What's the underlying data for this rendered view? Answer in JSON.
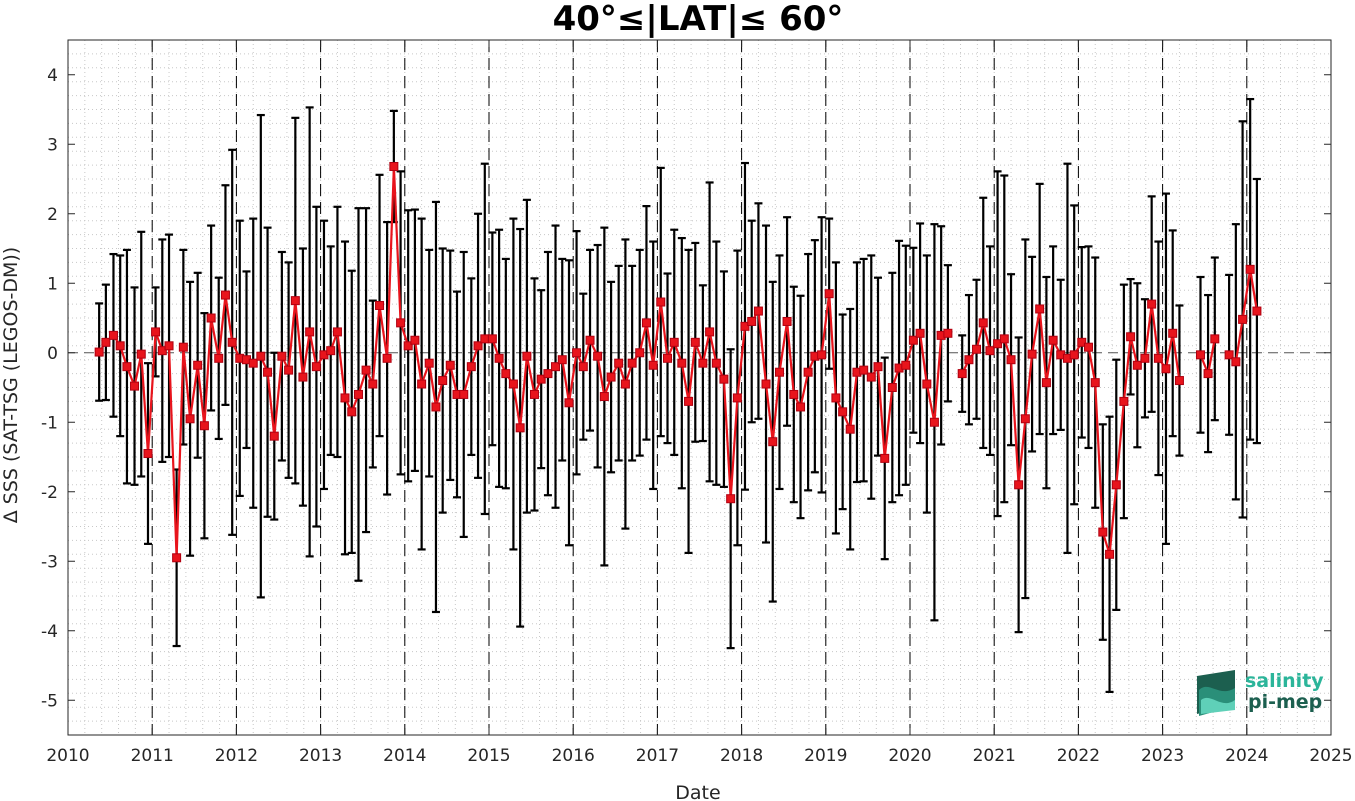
{
  "chart_data": {
    "type": "line",
    "title": "40°≤|LAT|≤ 60°",
    "xlabel": "Date",
    "ylabel": "Δ SSS (SAT-TSG (LEGOS-DM))",
    "xlim": [
      2010,
      2025
    ],
    "ylim": [
      -5.5,
      4.5
    ],
    "x_ticks": [
      "2010",
      "2011",
      "2012",
      "2013",
      "2014",
      "2015",
      "2016",
      "2017",
      "2018",
      "2019",
      "2020",
      "2021",
      "2022",
      "2023",
      "2024",
      "2025"
    ],
    "y_ticks": [
      "4",
      "3",
      "2",
      "1",
      "0",
      "-1",
      "-2",
      "-3",
      "-4",
      "-5"
    ],
    "grid": "dotted minor grid, dashed vertical lines at each year, dashed zero line",
    "series": [
      {
        "style": "red line with square markers and black error bars (±1 std)",
        "color": "#e8141c",
        "errorbar_color": "#000000",
        "points": [
          {
            "x": 2010.37,
            "y": 0.01,
            "err": 0.7
          },
          {
            "x": 2010.45,
            "y": 0.15,
            "err": 0.83
          },
          {
            "x": 2010.54,
            "y": 0.25,
            "err": 1.17
          },
          {
            "x": 2010.62,
            "y": 0.1,
            "err": 1.3
          },
          {
            "x": 2010.7,
            "y": -0.2,
            "err": 1.68
          },
          {
            "x": 2010.79,
            "y": -0.48,
            "err": 1.42
          },
          {
            "x": 2010.87,
            "y": -0.02,
            "err": 1.76
          },
          {
            "x": 2010.95,
            "y": -1.45,
            "err": 1.3
          },
          {
            "x": 2011.04,
            "y": 0.3,
            "err": 0.64
          },
          {
            "x": 2011.12,
            "y": 0.03,
            "err": 1.6
          },
          {
            "x": 2011.2,
            "y": 0.1,
            "err": 1.6
          },
          {
            "x": 2011.29,
            "y": -2.95,
            "err": 1.27
          },
          {
            "x": 2011.37,
            "y": 0.08,
            "err": 1.4
          },
          {
            "x": 2011.45,
            "y": -0.95,
            "err": 1.97
          },
          {
            "x": 2011.54,
            "y": -0.18,
            "err": 1.33
          },
          {
            "x": 2011.62,
            "y": -1.05,
            "err": 1.62
          },
          {
            "x": 2011.7,
            "y": 0.5,
            "err": 1.33
          },
          {
            "x": 2011.79,
            "y": -0.08,
            "err": 1.16
          },
          {
            "x": 2011.87,
            "y": 0.83,
            "err": 1.58
          },
          {
            "x": 2011.95,
            "y": 0.15,
            "err": 2.77
          },
          {
            "x": 2012.04,
            "y": -0.08,
            "err": 1.98
          },
          {
            "x": 2012.12,
            "y": -0.1,
            "err": 1.27
          },
          {
            "x": 2012.2,
            "y": -0.15,
            "err": 2.08
          },
          {
            "x": 2012.29,
            "y": -0.05,
            "err": 3.47
          },
          {
            "x": 2012.37,
            "y": -0.28,
            "err": 2.08
          },
          {
            "x": 2012.45,
            "y": -1.2,
            "err": 1.2
          },
          {
            "x": 2012.54,
            "y": -0.05,
            "err": 1.5
          },
          {
            "x": 2012.62,
            "y": -0.25,
            "err": 1.55
          },
          {
            "x": 2012.7,
            "y": 0.75,
            "err": 2.63
          },
          {
            "x": 2012.79,
            "y": -0.35,
            "err": 1.85
          },
          {
            "x": 2012.87,
            "y": 0.3,
            "err": 3.23
          },
          {
            "x": 2012.95,
            "y": -0.2,
            "err": 2.3
          },
          {
            "x": 2013.04,
            "y": -0.03,
            "err": 1.93
          },
          {
            "x": 2013.12,
            "y": 0.03,
            "err": 1.5
          },
          {
            "x": 2013.2,
            "y": 0.3,
            "err": 1.8
          },
          {
            "x": 2013.29,
            "y": -0.65,
            "err": 2.25
          },
          {
            "x": 2013.37,
            "y": -0.85,
            "err": 2.03
          },
          {
            "x": 2013.45,
            "y": -0.6,
            "err": 2.68
          },
          {
            "x": 2013.54,
            "y": -0.25,
            "err": 2.33
          },
          {
            "x": 2013.62,
            "y": -0.45,
            "err": 1.2
          },
          {
            "x": 2013.7,
            "y": 0.68,
            "err": 1.88
          },
          {
            "x": 2013.79,
            "y": -0.08,
            "err": 1.96
          },
          {
            "x": 2013.87,
            "y": 2.68,
            "err": 0.8
          },
          {
            "x": 2013.95,
            "y": 0.43,
            "err": 2.18
          },
          {
            "x": 2014.04,
            "y": 0.1,
            "err": 1.95
          },
          {
            "x": 2014.12,
            "y": 0.18,
            "err": 1.88
          },
          {
            "x": 2014.2,
            "y": -0.45,
            "err": 2.38
          },
          {
            "x": 2014.29,
            "y": -0.15,
            "err": 1.63
          },
          {
            "x": 2014.37,
            "y": -0.78,
            "err": 2.95
          },
          {
            "x": 2014.45,
            "y": -0.4,
            "err": 1.9
          },
          {
            "x": 2014.54,
            "y": -0.18,
            "err": 1.65
          },
          {
            "x": 2014.62,
            "y": -0.6,
            "err": 1.48
          },
          {
            "x": 2014.7,
            "y": -0.6,
            "err": 2.05
          },
          {
            "x": 2014.79,
            "y": -0.2,
            "err": 1.27
          },
          {
            "x": 2014.87,
            "y": 0.1,
            "err": 1.9
          },
          {
            "x": 2014.95,
            "y": 0.2,
            "err": 2.52
          },
          {
            "x": 2015.04,
            "y": 0.2,
            "err": 1.53
          },
          {
            "x": 2015.12,
            "y": -0.08,
            "err": 1.85
          },
          {
            "x": 2015.2,
            "y": -0.3,
            "err": 1.65
          },
          {
            "x": 2015.29,
            "y": -0.45,
            "err": 2.38
          },
          {
            "x": 2015.37,
            "y": -1.08,
            "err": 2.86
          },
          {
            "x": 2015.45,
            "y": -0.05,
            "err": 2.25
          },
          {
            "x": 2015.54,
            "y": -0.6,
            "err": 1.67
          },
          {
            "x": 2015.62,
            "y": -0.38,
            "err": 1.28
          },
          {
            "x": 2015.7,
            "y": -0.3,
            "err": 1.75
          },
          {
            "x": 2015.79,
            "y": -0.2,
            "err": 2.03
          },
          {
            "x": 2015.87,
            "y": -0.1,
            "err": 1.45
          },
          {
            "x": 2015.95,
            "y": -0.72,
            "err": 2.05
          },
          {
            "x": 2016.04,
            "y": 0.0,
            "err": 1.75
          },
          {
            "x": 2016.12,
            "y": -0.2,
            "err": 1.05
          },
          {
            "x": 2016.2,
            "y": 0.18,
            "err": 1.3
          },
          {
            "x": 2016.29,
            "y": -0.05,
            "err": 1.6
          },
          {
            "x": 2016.37,
            "y": -0.63,
            "err": 2.43
          },
          {
            "x": 2016.45,
            "y": -0.35,
            "err": 1.37
          },
          {
            "x": 2016.54,
            "y": -0.15,
            "err": 1.4
          },
          {
            "x": 2016.62,
            "y": -0.45,
            "err": 2.08
          },
          {
            "x": 2016.7,
            "y": -0.15,
            "err": 1.4
          },
          {
            "x": 2016.79,
            "y": 0.0,
            "err": 1.48
          },
          {
            "x": 2016.87,
            "y": 0.43,
            "err": 1.68
          },
          {
            "x": 2016.95,
            "y": -0.18,
            "err": 1.78
          },
          {
            "x": 2017.04,
            "y": 0.73,
            "err": 1.93
          },
          {
            "x": 2017.12,
            "y": -0.08,
            "err": 1.22
          },
          {
            "x": 2017.2,
            "y": 0.15,
            "err": 1.62
          },
          {
            "x": 2017.29,
            "y": -0.15,
            "err": 1.8
          },
          {
            "x": 2017.37,
            "y": -0.7,
            "err": 2.18
          },
          {
            "x": 2017.45,
            "y": 0.15,
            "err": 1.43
          },
          {
            "x": 2017.54,
            "y": -0.15,
            "err": 1.12
          },
          {
            "x": 2017.62,
            "y": 0.3,
            "err": 2.15
          },
          {
            "x": 2017.7,
            "y": -0.15,
            "err": 1.75
          },
          {
            "x": 2017.79,
            "y": -0.38,
            "err": 1.55
          },
          {
            "x": 2017.87,
            "y": -2.1,
            "err": 2.15
          },
          {
            "x": 2017.95,
            "y": -0.65,
            "err": 2.12
          },
          {
            "x": 2018.04,
            "y": 0.38,
            "err": 2.35
          },
          {
            "x": 2018.12,
            "y": 0.45,
            "err": 1.45
          },
          {
            "x": 2018.2,
            "y": 0.6,
            "err": 1.55
          },
          {
            "x": 2018.29,
            "y": -0.45,
            "err": 2.28
          },
          {
            "x": 2018.37,
            "y": -1.28,
            "err": 2.3
          },
          {
            "x": 2018.45,
            "y": -0.28,
            "err": 1.68
          },
          {
            "x": 2018.54,
            "y": 0.45,
            "err": 1.5
          },
          {
            "x": 2018.62,
            "y": -0.6,
            "err": 1.55
          },
          {
            "x": 2018.7,
            "y": -0.78,
            "err": 1.6
          },
          {
            "x": 2018.79,
            "y": -0.28,
            "err": 1.7
          },
          {
            "x": 2018.87,
            "y": -0.05,
            "err": 1.67
          },
          {
            "x": 2018.95,
            "y": -0.03,
            "err": 1.98
          },
          {
            "x": 2019.04,
            "y": 0.85,
            "err": 1.08
          },
          {
            "x": 2019.12,
            "y": -0.65,
            "err": 1.95
          },
          {
            "x": 2019.2,
            "y": -0.85,
            "err": 1.4
          },
          {
            "x": 2019.29,
            "y": -1.1,
            "err": 1.73
          },
          {
            "x": 2019.37,
            "y": -0.28,
            "err": 1.58
          },
          {
            "x": 2019.45,
            "y": -0.25,
            "err": 1.6
          },
          {
            "x": 2019.54,
            "y": -0.35,
            "err": 1.75
          },
          {
            "x": 2019.62,
            "y": -0.2,
            "err": 1.28
          },
          {
            "x": 2019.7,
            "y": -1.52,
            "err": 1.45
          },
          {
            "x": 2019.79,
            "y": -0.5,
            "err": 1.65
          },
          {
            "x": 2019.87,
            "y": -0.22,
            "err": 1.83
          },
          {
            "x": 2019.95,
            "y": -0.18,
            "err": 1.72
          },
          {
            "x": 2020.04,
            "y": 0.18,
            "err": 1.33
          },
          {
            "x": 2020.12,
            "y": 0.28,
            "err": 1.58
          },
          {
            "x": 2020.2,
            "y": -0.45,
            "err": 1.85
          },
          {
            "x": 2020.29,
            "y": -1.0,
            "err": 2.85
          },
          {
            "x": 2020.37,
            "y": 0.25,
            "err": 1.57
          },
          {
            "x": 2020.45,
            "y": 0.28,
            "err": 0.98
          },
          {
            "x": 2020.62,
            "y": -0.3,
            "err": 0.55
          },
          {
            "x": 2020.7,
            "y": -0.1,
            "err": 0.93
          },
          {
            "x": 2020.79,
            "y": 0.05,
            "err": 1.0
          },
          {
            "x": 2020.87,
            "y": 0.43,
            "err": 1.8
          },
          {
            "x": 2020.95,
            "y": 0.03,
            "err": 1.5
          },
          {
            "x": 2021.04,
            "y": 0.13,
            "err": 2.48
          },
          {
            "x": 2021.12,
            "y": 0.2,
            "err": 2.35
          },
          {
            "x": 2021.2,
            "y": -0.1,
            "err": 1.23
          },
          {
            "x": 2021.29,
            "y": -1.9,
            "err": 2.12
          },
          {
            "x": 2021.37,
            "y": -0.95,
            "err": 2.58
          },
          {
            "x": 2021.45,
            "y": -0.02,
            "err": 1.4
          },
          {
            "x": 2021.54,
            "y": 0.63,
            "err": 1.8
          },
          {
            "x": 2021.62,
            "y": -0.43,
            "err": 1.52
          },
          {
            "x": 2021.7,
            "y": 0.18,
            "err": 1.35
          },
          {
            "x": 2021.79,
            "y": -0.03,
            "err": 1.08
          },
          {
            "x": 2021.87,
            "y": -0.08,
            "err": 2.8
          },
          {
            "x": 2021.95,
            "y": -0.03,
            "err": 2.15
          },
          {
            "x": 2022.04,
            "y": 0.15,
            "err": 1.37
          },
          {
            "x": 2022.12,
            "y": 0.08,
            "err": 1.45
          },
          {
            "x": 2022.2,
            "y": -0.43,
            "err": 1.8
          },
          {
            "x": 2022.29,
            "y": -2.58,
            "err": 1.55
          },
          {
            "x": 2022.37,
            "y": -2.9,
            "err": 1.98
          },
          {
            "x": 2022.45,
            "y": -1.9,
            "err": 1.8
          },
          {
            "x": 2022.54,
            "y": -0.7,
            "err": 1.68
          },
          {
            "x": 2022.62,
            "y": 0.23,
            "err": 0.83
          },
          {
            "x": 2022.7,
            "y": -0.18,
            "err": 1.18
          },
          {
            "x": 2022.79,
            "y": -0.08,
            "err": 0.85
          },
          {
            "x": 2022.87,
            "y": 0.7,
            "err": 1.55
          },
          {
            "x": 2022.95,
            "y": -0.08,
            "err": 1.68
          },
          {
            "x": 2023.04,
            "y": -0.23,
            "err": 2.52
          },
          {
            "x": 2023.12,
            "y": 0.28,
            "err": 1.48
          },
          {
            "x": 2023.2,
            "y": -0.4,
            "err": 1.08
          },
          {
            "x": 2023.45,
            "y": -0.03,
            "err": 1.12
          },
          {
            "x": 2023.54,
            "y": -0.3,
            "err": 1.13
          },
          {
            "x": 2023.62,
            "y": 0.2,
            "err": 1.17
          },
          {
            "x": 2023.79,
            "y": -0.03,
            "err": 1.15
          },
          {
            "x": 2023.87,
            "y": -0.13,
            "err": 1.98
          },
          {
            "x": 2023.95,
            "y": 0.48,
            "err": 2.85
          },
          {
            "x": 2024.04,
            "y": 1.2,
            "err": 2.45
          },
          {
            "x": 2024.12,
            "y": 0.6,
            "err": 1.9
          }
        ]
      }
    ]
  },
  "logo": {
    "line1": "salinity",
    "line2": "pi-mep",
    "color_dark": "#1c5f4f",
    "color_light": "#2bb59a"
  }
}
